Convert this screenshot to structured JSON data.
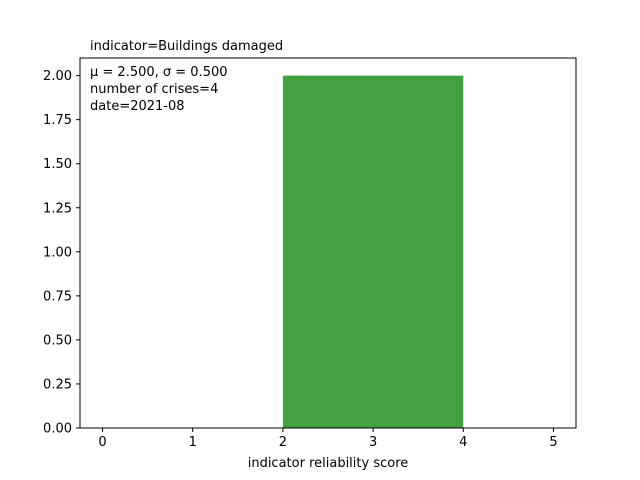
{
  "chart_data": {
    "type": "bar",
    "title": "indicator=Buildings damaged",
    "xlabel": "indicator reliability score",
    "ylabel": "",
    "xlim": [
      -0.25,
      5.25
    ],
    "ylim": [
      0,
      2.1
    ],
    "x_ticks": [
      0,
      1,
      2,
      3,
      4,
      5
    ],
    "x_tick_labels": [
      "0",
      "1",
      "2",
      "3",
      "4",
      "5"
    ],
    "y_ticks": [
      0,
      0.25,
      0.5,
      0.75,
      1.0,
      1.25,
      1.5,
      1.75,
      2.0
    ],
    "y_tick_labels": [
      "0.00",
      "0.25",
      "0.50",
      "0.75",
      "1.00",
      "1.25",
      "1.50",
      "1.75",
      "2.00"
    ],
    "bars": [
      {
        "x_start": 2,
        "x_end": 4,
        "value": 2
      }
    ],
    "bar_color": "#43a143",
    "annotations": [
      "μ = 2.500,  σ = 0.500",
      "number of crises=4",
      "date=2021-08"
    ],
    "grid": false,
    "legend": "none"
  }
}
